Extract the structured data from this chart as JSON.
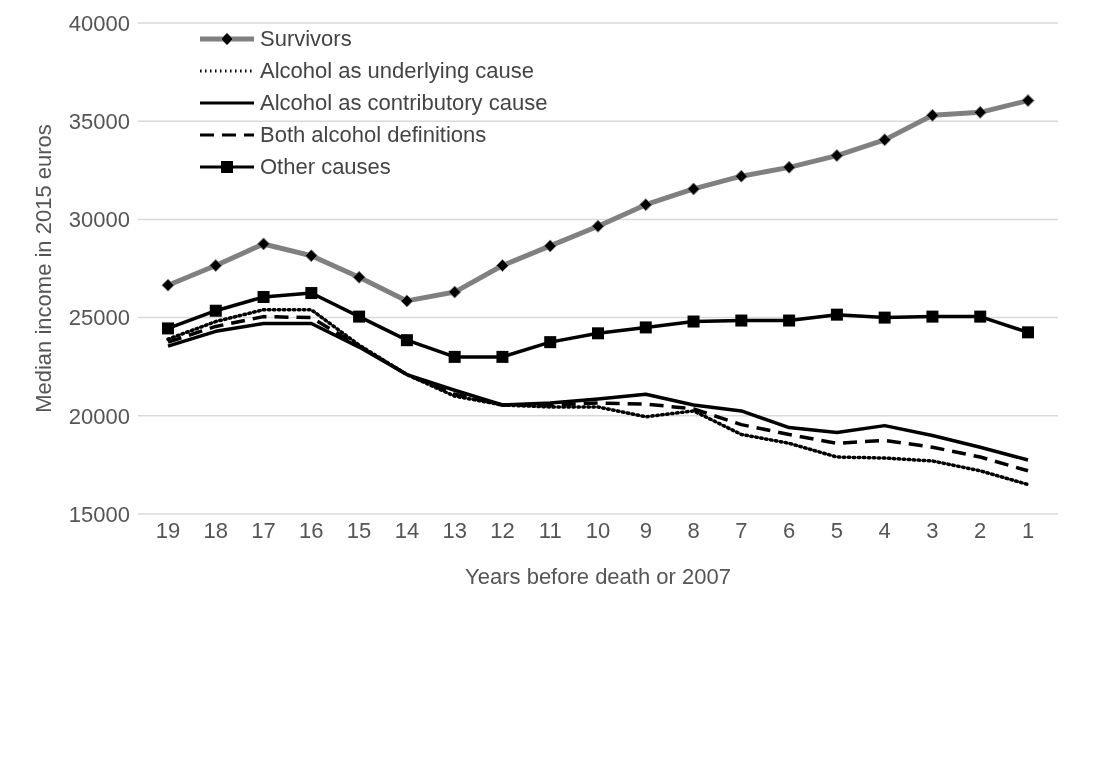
{
  "chart_data": {
    "type": "line",
    "xlabel": "Years before death or 2007",
    "ylabel": "Median income in 2015 euros",
    "categories": [
      "19",
      "18",
      "17",
      "16",
      "15",
      "14",
      "13",
      "12",
      "11",
      "10",
      "9",
      "8",
      "7",
      "6",
      "5",
      "4",
      "3",
      "2",
      "1"
    ],
    "ylim": [
      15000,
      40000
    ],
    "yticks": [
      15000,
      20000,
      25000,
      30000,
      35000,
      40000
    ],
    "grid": "y",
    "legend": "top left",
    "series": [
      {
        "name": "Survivors",
        "color": "#808080",
        "marker": "diamond",
        "line_style": "solid",
        "values": [
          26650,
          27650,
          28750,
          28150,
          27050,
          25850,
          26300,
          27650,
          28650,
          29650,
          30750,
          31550,
          32200,
          32650,
          33250,
          34050,
          35300,
          35450,
          36050
        ]
      },
      {
        "name": "Alcohol as underlying cause",
        "color": "#000000",
        "marker": "none",
        "line_style": "dotted",
        "values": [
          23900,
          24800,
          25400,
          25400,
          23600,
          22100,
          21000,
          20550,
          20450,
          20450,
          19950,
          20250,
          19050,
          18600,
          17900,
          17850,
          17700,
          17200,
          16500
        ]
      },
      {
        "name": "Alcohol as contributory cause",
        "color": "#000000",
        "marker": "none",
        "line_style": "solid",
        "values": [
          23550,
          24300,
          24700,
          24700,
          23500,
          22100,
          21300,
          20550,
          20650,
          20850,
          21100,
          20550,
          20250,
          19400,
          19150,
          19500,
          19000,
          18400,
          17750
        ]
      },
      {
        "name": "Both alcohol definitions",
        "color": "#000000",
        "marker": "none",
        "line_style": "dashed",
        "values": [
          23750,
          24550,
          25050,
          25000,
          23550,
          22100,
          21100,
          20550,
          20550,
          20650,
          20600,
          20350,
          19550,
          19050,
          18600,
          18750,
          18400,
          17900,
          17200
        ]
      },
      {
        "name": "Other causes",
        "color": "#000000",
        "marker": "square",
        "line_style": "solid",
        "values": [
          24450,
          25350,
          26050,
          26250,
          25050,
          23850,
          23000,
          23000,
          23750,
          24200,
          24500,
          24800,
          24850,
          24850,
          25150,
          25000,
          25050,
          25050,
          24250
        ]
      }
    ]
  }
}
